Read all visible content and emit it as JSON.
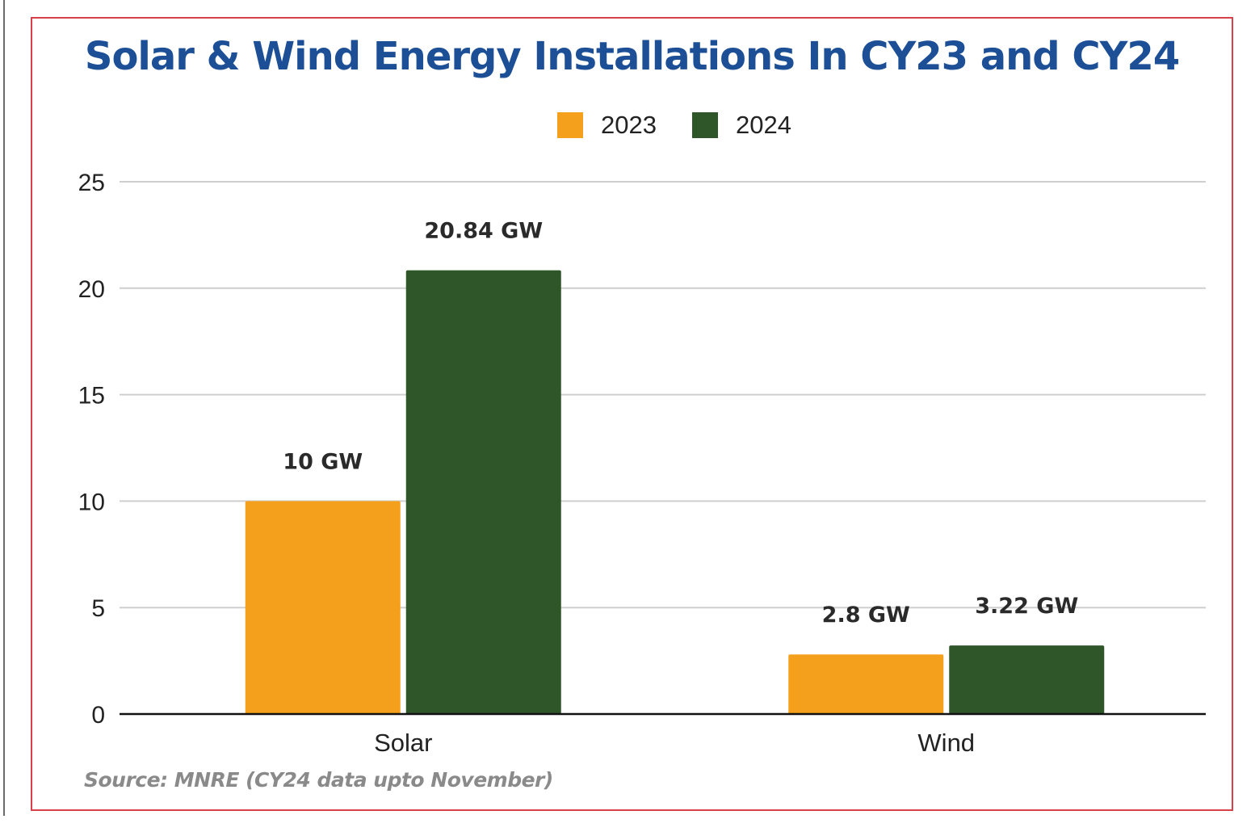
{
  "chart_data": {
    "type": "bar",
    "title": "Solar & Wind Energy Installations In CY23 and CY24",
    "categories": [
      "Solar",
      "Wind"
    ],
    "series": [
      {
        "name": "2023",
        "color": "#f5a01c",
        "values": [
          10,
          2.8
        ],
        "labels": [
          "10 GW",
          "2.8 GW"
        ]
      },
      {
        "name": "2024",
        "color": "#2f5628",
        "values": [
          20.84,
          3.22
        ],
        "labels": [
          "20.84 GW",
          "3.22 GW"
        ]
      }
    ],
    "ylim": [
      0,
      25
    ],
    "yticks": [
      "0",
      "5",
      "10",
      "15",
      "20",
      "25"
    ],
    "grid": true,
    "legend_position": "top-center",
    "source": "Source: MNRE (CY24 data upto November)"
  }
}
